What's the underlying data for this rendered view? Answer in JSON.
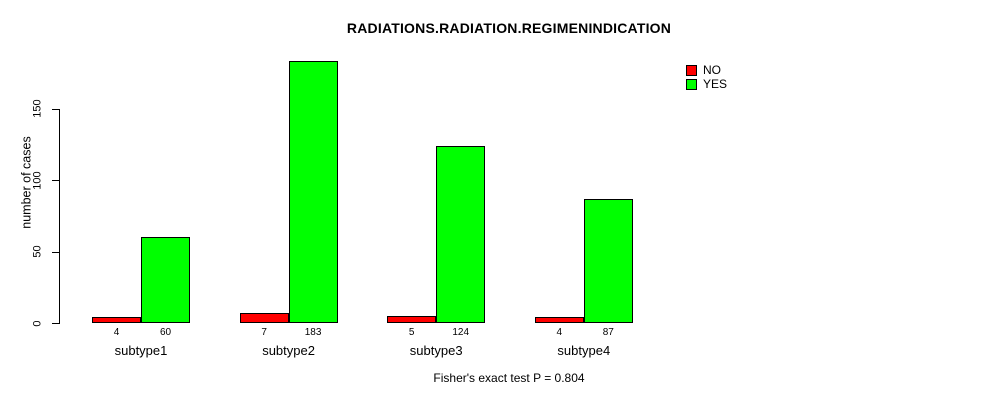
{
  "title": "RADIATIONS.RADIATION.REGIMENINDICATION",
  "ylabel": "number of cases",
  "caption": "Fisher's exact test P = 0.804",
  "legend": {
    "position": "top-right",
    "items": [
      {
        "label": "NO",
        "color": "#FF0000"
      },
      {
        "label": "YES",
        "color": "#00FF00"
      }
    ]
  },
  "chart_data": {
    "type": "bar",
    "title": "RADIATIONS.RADIATION.REGIMENINDICATION",
    "xlabel": "",
    "ylabel": "number of cases",
    "categories": [
      "subtype1",
      "subtype2",
      "subtype3",
      "subtype4"
    ],
    "series": [
      {
        "name": "NO",
        "color": "#FF0000",
        "values": [
          4,
          7,
          5,
          4
        ]
      },
      {
        "name": "YES",
        "color": "#00FF00",
        "values": [
          60,
          183,
          124,
          87
        ]
      }
    ],
    "bar_value_labels": [
      [
        "4",
        "60"
      ],
      [
        "7",
        "183"
      ],
      [
        "5",
        "124"
      ],
      [
        "4",
        "87"
      ]
    ],
    "yticks": [
      0,
      50,
      100,
      150
    ],
    "ylim": [
      0,
      190
    ],
    "grid": false,
    "legend_position": "top-right",
    "annotation": "Fisher's exact test P = 0.804"
  }
}
